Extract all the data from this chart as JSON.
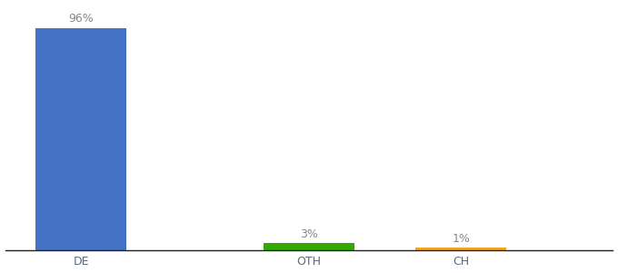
{
  "categories": [
    "DE",
    "OTH",
    "CH"
  ],
  "values": [
    96,
    3,
    1
  ],
  "bar_colors": [
    "#4472C4",
    "#33AA00",
    "#F5A623"
  ],
  "labels": [
    "96%",
    "3%",
    "1%"
  ],
  "background_color": "#ffffff",
  "ylim": [
    0,
    106
  ],
  "bar_width": 0.6,
  "label_fontsize": 9,
  "tick_fontsize": 9,
  "label_color": "#888888",
  "tick_color": "#5a6a7a",
  "x_positions": [
    0.5,
    2.0,
    3.0
  ],
  "xlim": [
    0.0,
    4.0
  ]
}
